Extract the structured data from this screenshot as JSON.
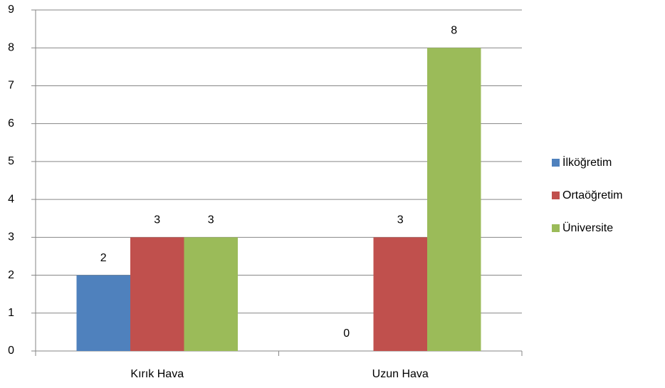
{
  "chart_data": {
    "type": "bar",
    "categories": [
      "Kırık Hava",
      "Uzun Hava"
    ],
    "series": [
      {
        "name": "İlköğretim",
        "color": "#4f81bd",
        "values": [
          2,
          0
        ]
      },
      {
        "name": "Ortaöğretim",
        "color": "#c0504d",
        "values": [
          3,
          3
        ]
      },
      {
        "name": "Üniversite",
        "color": "#9bbb59",
        "values": [
          3,
          8
        ]
      }
    ],
    "ylim": [
      0,
      9
    ],
    "yticks": [
      0,
      1,
      2,
      3,
      4,
      5,
      6,
      7,
      8,
      9
    ],
    "grid": true,
    "legend": "right"
  }
}
